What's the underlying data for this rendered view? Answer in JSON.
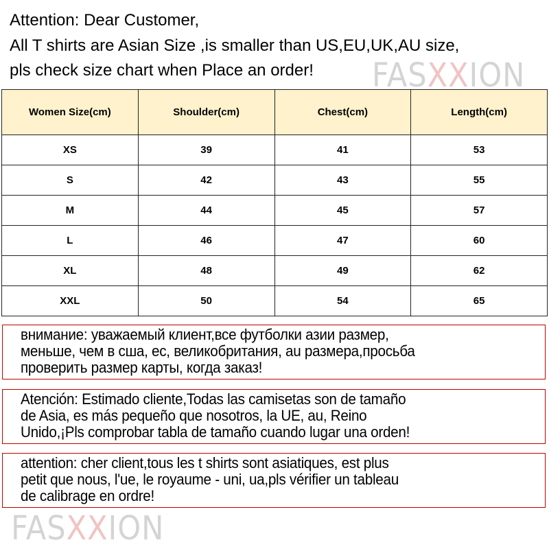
{
  "intro": [
    "Attention: Dear Customer,",
    "All T shirts are  Asian Size ,is smaller than US,EU,UK,AU size,",
    "pls check size chart when Place an order!"
  ],
  "watermark": {
    "pre": "FAS",
    "x": "XX",
    "post": "ION"
  },
  "table": {
    "headers": [
      "Women Size(cm)",
      "Shoulder(cm)",
      "Chest(cm)",
      "Length(cm)"
    ],
    "rows": [
      [
        "XS",
        "39",
        "41",
        "53"
      ],
      [
        "S",
        "42",
        "43",
        "55"
      ],
      [
        "M",
        "44",
        "45",
        "57"
      ],
      [
        "L",
        "46",
        "47",
        "60"
      ],
      [
        "XL",
        "48",
        "49",
        "62"
      ],
      [
        "XXL",
        "50",
        "54",
        "65"
      ]
    ]
  },
  "notes": [
    [
      "внимание: уважаемый клиент,все футболки азии размер,",
      "меньше, чем в сша, ес, великобритания, au размера,просьба",
      "проверить размер карты, когда заказ!"
    ],
    [
      "Atención: Estimado cliente,Todas las camisetas son de tamaño",
      "de Asia, es más pequeño que nosotros, la UE, au, Reino",
      "Unido,¡Pls comprobar tabla de tamaño cuando lugar una orden!"
    ],
    [
      "attention: cher client,tous les t shirts sont asiatiques, est plus",
      "petit que nous, l'ue, le royaume - uni, ua,pls vérifier un tableau",
      "de calibrage en ordre!"
    ]
  ],
  "colors": {
    "header_bg": "#fff2cc",
    "note_border": "#c00000"
  }
}
